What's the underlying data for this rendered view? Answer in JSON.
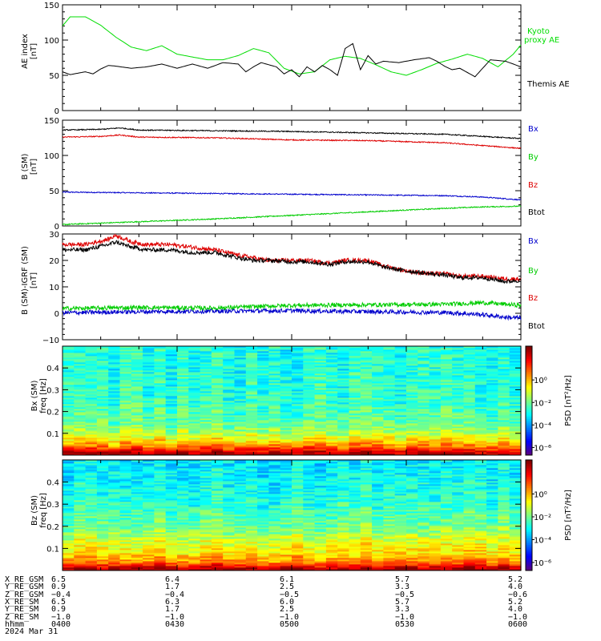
{
  "colors": {
    "kyoto": "#00dd00",
    "themis": "#000000",
    "bx": "#0000cc",
    "by": "#00cc00",
    "bz": "#dd0000",
    "btot": "#000000"
  },
  "chart_data": [
    {
      "type": "line",
      "ylabel": "AE index [nT]",
      "ylim": [
        0,
        150
      ],
      "yticks": [
        "0",
        "50",
        "100",
        "150"
      ],
      "xlim": [
        0,
        120
      ],
      "series": [
        {
          "name": "Kyoto proxy AE",
          "color": "#00dd00",
          "x": [
            0,
            2,
            4,
            6,
            10,
            14,
            18,
            22,
            26,
            30,
            34,
            38,
            42,
            46,
            50,
            54,
            58,
            62,
            66,
            70,
            74,
            78,
            82,
            86,
            90,
            94,
            98,
            102,
            106,
            110,
            114,
            118,
            120
          ],
          "y": [
            120,
            133,
            133,
            133,
            121,
            104,
            90,
            85,
            92,
            80,
            76,
            72,
            72,
            78,
            88,
            82,
            60,
            52,
            55,
            72,
            77,
            74,
            65,
            55,
            50,
            58,
            67,
            73,
            80,
            74,
            62,
            80,
            93
          ]
        },
        {
          "name": "Themis AE",
          "color": "#000000",
          "x": [
            0,
            2,
            4,
            6,
            8,
            10,
            12,
            14,
            18,
            22,
            26,
            30,
            34,
            38,
            42,
            46,
            48,
            50,
            52,
            56,
            58,
            60,
            62,
            64,
            66,
            68,
            70,
            72,
            74,
            76,
            78,
            80,
            82,
            84,
            88,
            92,
            96,
            98,
            100,
            102,
            104,
            108,
            112,
            116,
            120
          ],
          "y": [
            55,
            51,
            53,
            55,
            52,
            59,
            64,
            63,
            60,
            62,
            66,
            60,
            66,
            60,
            68,
            66,
            55,
            62,
            68,
            62,
            52,
            58,
            48,
            62,
            55,
            64,
            58,
            50,
            88,
            95,
            58,
            78,
            66,
            70,
            68,
            72,
            75,
            70,
            63,
            58,
            60,
            48,
            72,
            70,
            62
          ]
        }
      ]
    },
    {
      "type": "line",
      "ylabel": "B (SM) [nT]",
      "ylim": [
        0,
        150
      ],
      "yticks": [
        "0",
        "50",
        "100",
        "150"
      ],
      "xlim": [
        0,
        120
      ],
      "series": [
        {
          "name": "Bx",
          "color": "#0000cc",
          "x": [
            0,
            20,
            40,
            60,
            80,
            100,
            110,
            120
          ],
          "y": [
            48,
            47,
            46,
            45,
            44,
            43,
            41,
            37
          ]
        },
        {
          "name": "By",
          "color": "#00cc00",
          "x": [
            0,
            20,
            40,
            60,
            80,
            100,
            110,
            120
          ],
          "y": [
            2,
            6,
            10,
            15,
            20,
            25,
            27,
            28
          ]
        },
        {
          "name": "Bz",
          "color": "#dd0000",
          "x": [
            0,
            10,
            15,
            20,
            40,
            60,
            80,
            100,
            110,
            120
          ],
          "y": [
            126,
            127,
            129,
            126,
            125,
            122,
            121,
            118,
            114,
            110
          ]
        },
        {
          "name": "Btot",
          "color": "#000000",
          "x": [
            0,
            10,
            15,
            20,
            40,
            60,
            80,
            100,
            110,
            120
          ],
          "y": [
            136,
            137,
            139,
            136,
            135,
            134,
            132,
            130,
            127,
            124
          ]
        }
      ]
    },
    {
      "type": "line",
      "ylabel": "B (SM)-IGRF (SM) [nT]",
      "ylim": [
        -10,
        30
      ],
      "yticks": [
        "-10",
        "0",
        "10",
        "20",
        "30"
      ],
      "xlim": [
        0,
        120
      ],
      "series": [
        {
          "name": "Bx",
          "color": "#0000cc",
          "x": [
            0,
            20,
            40,
            60,
            80,
            100,
            110,
            116,
            120
          ],
          "y": [
            0.2,
            0.6,
            0.8,
            1.0,
            0.6,
            0.3,
            -0.5,
            -1.5,
            -1.8
          ]
        },
        {
          "name": "By",
          "color": "#00cc00",
          "x": [
            0,
            20,
            40,
            60,
            80,
            100,
            110,
            120
          ],
          "y": [
            1.8,
            2.2,
            2.0,
            3.0,
            3.2,
            3.4,
            4.0,
            3.0
          ]
        },
        {
          "name": "Bz",
          "color": "#dd0000",
          "x": [
            0,
            6,
            12,
            14,
            18,
            22,
            28,
            34,
            40,
            46,
            50,
            54,
            60,
            64,
            70,
            74,
            80,
            84,
            90,
            96,
            100,
            104,
            110,
            116,
            120
          ],
          "y": [
            26,
            26,
            28,
            29.5,
            27,
            26,
            26,
            25,
            24,
            22,
            21,
            20,
            20,
            20,
            19,
            20,
            20,
            18,
            16,
            15,
            15,
            14,
            14,
            13,
            13
          ]
        },
        {
          "name": "Btot",
          "color": "#000000",
          "x": [
            0,
            6,
            12,
            14,
            18,
            22,
            28,
            34,
            40,
            46,
            50,
            54,
            60,
            64,
            70,
            74,
            80,
            84,
            90,
            96,
            100,
            104,
            110,
            116,
            120
          ],
          "y": [
            24,
            24,
            26,
            27,
            25,
            24,
            24,
            23,
            23,
            21,
            20,
            20,
            19.5,
            19.5,
            18.5,
            19.5,
            19.5,
            17.5,
            16,
            15,
            14.5,
            13.5,
            13.5,
            12,
            12.5
          ]
        }
      ]
    },
    {
      "type": "heatmap",
      "ylabel": "Bx (SM) freq [Hz]",
      "yticks": [
        "0.1",
        "0.2",
        "0.3",
        "0.4"
      ],
      "ylim": [
        0,
        0.5
      ],
      "colorbar_label": "PSD [nT²/Hz]",
      "colorbar_ticks": [
        "10⁰",
        "10⁻²",
        "10⁻⁴",
        "10⁻⁶"
      ],
      "colorbar_log_range": [
        -7,
        1.5
      ],
      "frequency_psd_log": [
        {
          "f": 0.01,
          "psd": 1.0
        },
        {
          "f": 0.04,
          "psd": -0.5
        },
        {
          "f": 0.07,
          "psd": -1.5
        },
        {
          "f": 0.1,
          "psd": -2.3
        },
        {
          "f": 0.15,
          "psd": -3.0
        },
        {
          "f": 0.25,
          "psd": -3.4
        },
        {
          "f": 0.35,
          "psd": -3.5
        },
        {
          "f": 0.45,
          "psd": -3.6
        }
      ]
    },
    {
      "type": "heatmap",
      "ylabel": "Bz (SM) freq [Hz]",
      "yticks": [
        "0.1",
        "0.2",
        "0.3",
        "0.4"
      ],
      "ylim": [
        0,
        0.5
      ],
      "colorbar_label": "PSD [nT²/Hz]",
      "colorbar_ticks": [
        "10⁰",
        "10⁻²",
        "10⁻⁴",
        "10⁻⁶"
      ],
      "colorbar_log_range": [
        -7,
        1.5
      ],
      "frequency_psd_log": [
        {
          "f": 0.01,
          "psd": 1.0
        },
        {
          "f": 0.04,
          "psd": -0.6
        },
        {
          "f": 0.08,
          "psd": -1.4
        },
        {
          "f": 0.12,
          "psd": -1.8
        },
        {
          "f": 0.2,
          "psd": -2.8
        },
        {
          "f": 0.3,
          "psd": -3.4
        },
        {
          "f": 0.4,
          "psd": -3.7
        },
        {
          "f": 0.48,
          "psd": -3.9
        }
      ]
    }
  ],
  "orbit_table": {
    "rows": [
      {
        "label": "X_RE_GSM",
        "values": [
          "6.5",
          "6.4",
          "6.1",
          "5.7",
          "5.2"
        ]
      },
      {
        "label": "Y_RE_GSM",
        "values": [
          "0.9",
          "1.7",
          "2.5",
          "3.3",
          "4.0"
        ]
      },
      {
        "label": "Z_RE_GSM",
        "values": [
          "-0.4",
          "-0.4",
          "-0.5",
          "-0.5",
          "-0.6"
        ]
      },
      {
        "label": "X_RE_SM",
        "values": [
          "6.5",
          "6.3",
          "6.0",
          "5.7",
          "5.2"
        ]
      },
      {
        "label": "Y_RE_SM",
        "values": [
          "0.9",
          "1.7",
          "2.5",
          "3.3",
          "4.0"
        ]
      },
      {
        "label": "Z_RE_SM",
        "values": [
          "-1.0",
          "-1.0",
          "-1.0",
          "-1.0",
          "-1.0"
        ]
      },
      {
        "label": "hhmm",
        "values": [
          "0400",
          "0430",
          "0500",
          "0530",
          "0600"
        ]
      }
    ],
    "date": "2024 Mar 31"
  }
}
